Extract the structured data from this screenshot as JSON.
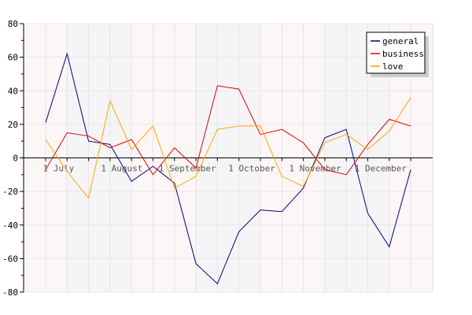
{
  "chart_data": {
    "type": "line",
    "x": [
      0,
      1,
      2,
      3,
      4,
      5,
      6,
      7,
      8,
      9,
      10,
      11,
      12,
      13,
      14,
      15,
      16,
      17
    ],
    "x_tick_labels": [
      {
        "x": 0.6,
        "label": "1 July"
      },
      {
        "x": 3.55,
        "label": "1 August"
      },
      {
        "x": 6.6,
        "label": "1 September"
      },
      {
        "x": 9.6,
        "label": "1 October"
      },
      {
        "x": 12.55,
        "label": "1 November"
      },
      {
        "x": 15.6,
        "label": "1 December"
      }
    ],
    "ylim": [
      -80,
      80
    ],
    "y_ticks": [
      -80,
      -60,
      -40,
      -20,
      0,
      20,
      40,
      60,
      80
    ],
    "series": [
      {
        "name": "general",
        "color": "#000080",
        "values": [
          21,
          62,
          10,
          8,
          -14,
          -5,
          -15,
          -63,
          -75,
          -44,
          -31,
          -32,
          -18,
          12,
          17,
          -33,
          -53,
          -7
        ]
      },
      {
        "name": "business",
        "color": "#e00000",
        "values": [
          -7,
          15,
          13,
          6,
          11,
          -10,
          6,
          -6,
          43,
          41,
          14,
          17,
          9,
          -7,
          -10,
          8,
          23,
          19
        ]
      },
      {
        "name": "love",
        "color": "#ffa500",
        "values": [
          11,
          -8,
          -24,
          34,
          5,
          19,
          -18,
          -11,
          17,
          19,
          19,
          -11,
          -17,
          9,
          14,
          5,
          16,
          36
        ]
      }
    ],
    "grid": true,
    "legend_position": "top-right",
    "title": "",
    "xlabel": "",
    "ylabel": ""
  }
}
